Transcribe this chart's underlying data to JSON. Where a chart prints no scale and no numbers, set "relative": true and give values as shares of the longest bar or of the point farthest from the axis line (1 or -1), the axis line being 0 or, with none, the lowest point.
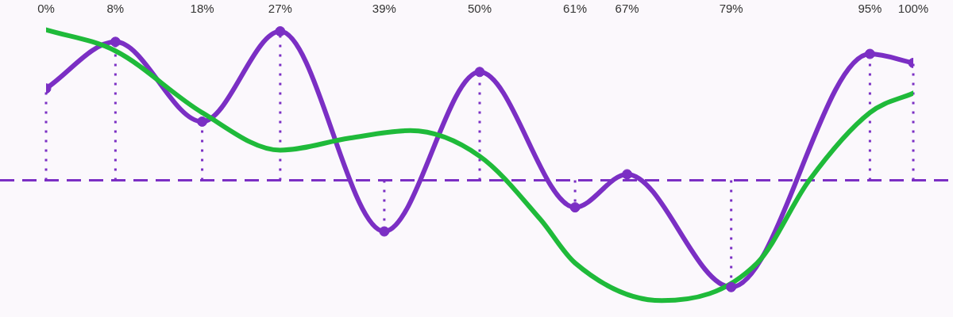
{
  "chart_data": {
    "type": "line",
    "relative": true,
    "xlim": [
      0,
      100
    ],
    "xticks": [
      {
        "value": 0,
        "label": "0%"
      },
      {
        "value": 8,
        "label": "8%"
      },
      {
        "value": 18,
        "label": "18%"
      },
      {
        "value": 27,
        "label": "27%"
      },
      {
        "value": 39,
        "label": "39%"
      },
      {
        "value": 50,
        "label": "50%"
      },
      {
        "value": 61,
        "label": "61%"
      },
      {
        "value": 67,
        "label": "67%"
      },
      {
        "value": 79,
        "label": "79%"
      },
      {
        "value": 95,
        "label": "95%"
      },
      {
        "value": 100,
        "label": "100%"
      }
    ],
    "series": [
      {
        "color": "#1fba3a",
        "x": [
          0,
          8,
          18,
          27,
          35,
          42,
          50,
          57,
          61,
          71,
          82,
          88,
          95,
          100
        ],
        "values": [
          1.0,
          0.86,
          0.45,
          0.2,
          0.28,
          0.33,
          0.16,
          -0.26,
          -0.55,
          -0.8,
          -0.55,
          0,
          0.45,
          0.58
        ]
      },
      {
        "color": "#7b2fc4",
        "x": [
          0,
          8,
          18,
          27,
          39,
          50,
          61,
          67,
          79,
          95,
          100
        ],
        "values": [
          0.61,
          0.92,
          0.39,
          0.99,
          -0.34,
          0.72,
          -0.18,
          0.04,
          -0.71,
          0.84,
          0.78
        ]
      },
      {
        "type": "lollipop",
        "marker": "circle",
        "line_style": "dotted",
        "color": "#7b2fc4",
        "x": [
          0,
          8,
          18,
          27,
          39,
          50,
          61,
          67,
          79,
          95,
          100
        ],
        "values": [
          0.61,
          0.92,
          0.39,
          0.99,
          -0.34,
          0.72,
          -0.18,
          0.04,
          -0.71,
          0.84,
          0.78
        ]
      }
    ],
    "ref_lines": [
      {
        "axis": "y",
        "value": 0,
        "color": "#7b2fc4",
        "line_style": "dashed"
      }
    ],
    "grid": false,
    "legend": false,
    "tick_labels": "x",
    "marker": "none",
    "line_style": "solid"
  }
}
